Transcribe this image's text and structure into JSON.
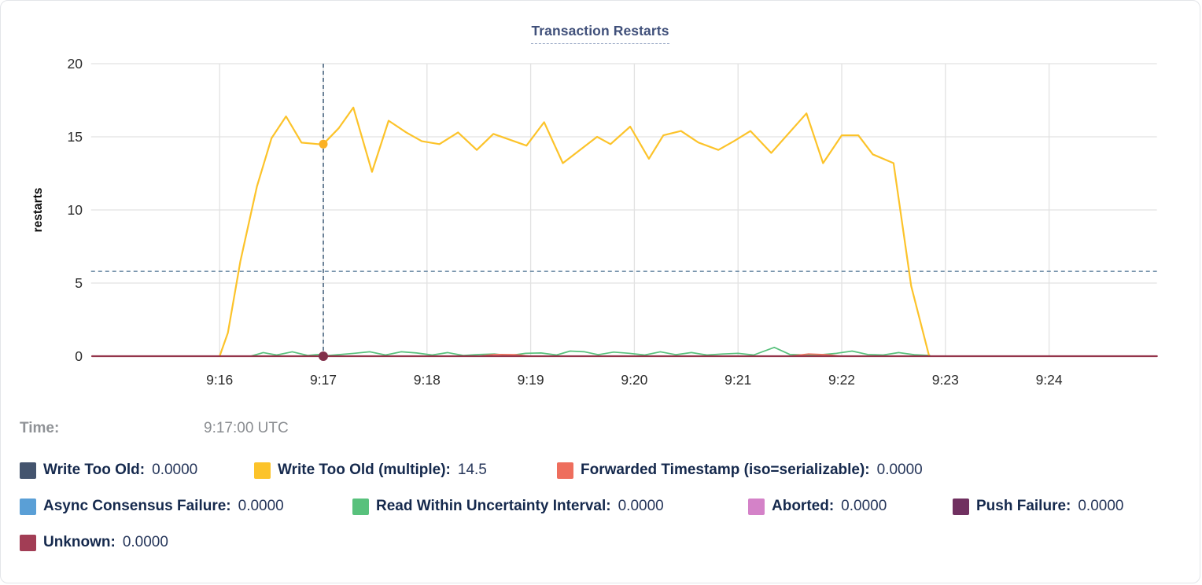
{
  "chart": {
    "title": "Transaction Restarts"
  },
  "hover": {
    "time_label": "Time:",
    "time_value": "9:17:00 UTC"
  },
  "chart_data": {
    "type": "line",
    "title": "Transaction Restarts",
    "xlabel": "",
    "ylabel": "restarts",
    "ylim": [
      0,
      20
    ],
    "y_ticks": [
      0,
      5,
      10,
      15,
      20
    ],
    "x_domain_minutes": [
      14.76,
      25.04
    ],
    "x_ticks": [
      {
        "t": 16,
        "label": "9:16"
      },
      {
        "t": 17,
        "label": "9:17"
      },
      {
        "t": 18,
        "label": "9:18"
      },
      {
        "t": 19,
        "label": "9:19"
      },
      {
        "t": 20,
        "label": "9:20"
      },
      {
        "t": 21,
        "label": "9:21"
      },
      {
        "t": 22,
        "label": "9:22"
      },
      {
        "t": 23,
        "label": "9:23"
      },
      {
        "t": 24,
        "label": "9:24"
      }
    ],
    "grid": true,
    "legend_position": "bottom",
    "crosshair": {
      "t": 17,
      "time_text": "9:17:00 UTC",
      "threshold_hline": 5.8
    },
    "series": [
      {
        "id": "write-too-old",
        "name": "Write Too Old",
        "color": "#44546e",
        "hover_value": "0.0000",
        "points": [
          [
            14.77,
            0
          ],
          [
            22.85,
            0
          ]
        ]
      },
      {
        "id": "async-consensus-failure",
        "name": "Async Consensus Failure",
        "color": "#5a9fd6",
        "hover_value": "0.0000",
        "points": [
          [
            14.77,
            0
          ],
          [
            22.85,
            0
          ]
        ]
      },
      {
        "id": "aborted",
        "name": "Aborted",
        "color": "#d482c8",
        "hover_value": "0.0000",
        "points": [
          [
            14.77,
            0
          ],
          [
            22.85,
            0
          ]
        ]
      },
      {
        "id": "push-failure",
        "name": "Push Failure",
        "color": "#703060",
        "hover_value": "0.0000",
        "points": [
          [
            14.77,
            0
          ],
          [
            22.85,
            0
          ]
        ]
      },
      {
        "id": "read-within-uncertainty-interval",
        "name": "Read Within Uncertainty Interval",
        "color": "#58c17c",
        "hover_value": "0.0000",
        "points": [
          [
            16.3,
            0
          ],
          [
            16.42,
            0.25
          ],
          [
            16.55,
            0.08
          ],
          [
            16.7,
            0.3
          ],
          [
            16.85,
            0.05
          ],
          [
            16.95,
            0.12
          ],
          [
            17.05,
            0.05
          ],
          [
            17.3,
            0.2
          ],
          [
            17.45,
            0.3
          ],
          [
            17.6,
            0.08
          ],
          [
            17.75,
            0.3
          ],
          [
            17.9,
            0.22
          ],
          [
            18.05,
            0.08
          ],
          [
            18.2,
            0.25
          ],
          [
            18.35,
            0.05
          ],
          [
            18.5,
            0.12
          ],
          [
            18.65,
            0.15
          ],
          [
            18.8,
            0.05
          ],
          [
            18.95,
            0.2
          ],
          [
            19.1,
            0.22
          ],
          [
            19.25,
            0.08
          ],
          [
            19.38,
            0.35
          ],
          [
            19.52,
            0.3
          ],
          [
            19.65,
            0.1
          ],
          [
            19.8,
            0.28
          ],
          [
            19.95,
            0.2
          ],
          [
            20.1,
            0.08
          ],
          [
            20.25,
            0.3
          ],
          [
            20.4,
            0.1
          ],
          [
            20.55,
            0.25
          ],
          [
            20.7,
            0.08
          ],
          [
            20.85,
            0.15
          ],
          [
            21.0,
            0.2
          ],
          [
            21.15,
            0.08
          ],
          [
            21.35,
            0.6
          ],
          [
            21.5,
            0.12
          ],
          [
            21.65,
            0.08
          ],
          [
            21.8,
            0.1
          ],
          [
            21.95,
            0.2
          ],
          [
            22.1,
            0.35
          ],
          [
            22.25,
            0.12
          ],
          [
            22.4,
            0.08
          ],
          [
            22.55,
            0.25
          ],
          [
            22.7,
            0.1
          ],
          [
            22.85,
            0.05
          ]
        ]
      },
      {
        "id": "forwarded-timestamp",
        "name": "Forwarded Timestamp (iso=serializable)",
        "color": "#ee6e5d",
        "hover_value": "0.0000",
        "points": [
          [
            14.77,
            0
          ],
          [
            18.5,
            0
          ],
          [
            18.65,
            0.12
          ],
          [
            18.85,
            0.1
          ],
          [
            19.0,
            0
          ],
          [
            21.5,
            0
          ],
          [
            21.68,
            0.15
          ],
          [
            21.85,
            0.1
          ],
          [
            22.0,
            0
          ],
          [
            22.85,
            0
          ]
        ]
      },
      {
        "id": "write-too-old-multiple",
        "name": "Write Too Old (multiple)",
        "color": "#fcc32a",
        "hover_value": "14.5",
        "marker": [
          17,
          14.5
        ],
        "marker_color": "#fbb124",
        "points": [
          [
            16.0,
            0
          ],
          [
            16.08,
            1.6
          ],
          [
            16.2,
            6.5
          ],
          [
            16.36,
            11.6
          ],
          [
            16.5,
            14.9
          ],
          [
            16.64,
            16.4
          ],
          [
            16.79,
            14.6
          ],
          [
            16.95,
            14.5
          ],
          [
            17.0,
            14.5
          ],
          [
            17.15,
            15.6
          ],
          [
            17.29,
            17.0
          ],
          [
            17.47,
            12.6
          ],
          [
            17.63,
            16.1
          ],
          [
            17.8,
            15.3
          ],
          [
            17.95,
            14.7
          ],
          [
            18.12,
            14.5
          ],
          [
            18.3,
            15.3
          ],
          [
            18.48,
            14.1
          ],
          [
            18.64,
            15.2
          ],
          [
            18.96,
            14.4
          ],
          [
            19.13,
            16.0
          ],
          [
            19.31,
            13.2
          ],
          [
            19.64,
            15.0
          ],
          [
            19.77,
            14.5
          ],
          [
            19.96,
            15.7
          ],
          [
            20.14,
            13.5
          ],
          [
            20.28,
            15.1
          ],
          [
            20.45,
            15.4
          ],
          [
            20.62,
            14.6
          ],
          [
            20.81,
            14.1
          ],
          [
            20.96,
            14.7
          ],
          [
            21.12,
            15.4
          ],
          [
            21.32,
            13.9
          ],
          [
            21.66,
            16.6
          ],
          [
            21.82,
            13.2
          ],
          [
            22.0,
            15.1
          ],
          [
            22.16,
            15.1
          ],
          [
            22.3,
            13.8
          ],
          [
            22.5,
            13.2
          ],
          [
            22.67,
            4.8
          ],
          [
            22.84,
            0.1
          ]
        ]
      },
      {
        "id": "unknown",
        "name": "Unknown",
        "color": "#93344a",
        "hover_value": "0.0000",
        "marker": [
          17,
          0
        ],
        "marker_color": "#82304a",
        "points": [
          [
            14.77,
            0
          ],
          [
            25.04,
            0
          ]
        ]
      }
    ]
  },
  "legend": {
    "rows": [
      [
        {
          "id": "write-too-old",
          "label": "Write Too Old",
          "value": "0.0000",
          "color": "#44546e"
        },
        {
          "id": "write-too-old-multiple",
          "label": "Write Too Old (multiple)",
          "value": "14.5",
          "color": "#fcc32a"
        },
        {
          "id": "forwarded-timestamp",
          "label": "Forwarded Timestamp (iso=serializable)",
          "value": "0.0000",
          "color": "#ee6e5d"
        }
      ],
      [
        {
          "id": "async-consensus-failure",
          "label": "Async Consensus Failure",
          "value": "0.0000",
          "color": "#5a9fd6"
        },
        {
          "id": "read-within-uncertainty-interval",
          "label": "Read Within Uncertainty Interval",
          "value": "0.0000",
          "color": "#58c17c"
        },
        {
          "id": "aborted",
          "label": "Aborted",
          "value": "0.0000",
          "color": "#d482c8"
        },
        {
          "id": "push-failure",
          "label": "Push Failure",
          "value": "0.0000",
          "color": "#703060"
        }
      ],
      [
        {
          "id": "unknown",
          "label": "Unknown",
          "value": "0.0000",
          "color": "#a23d55"
        }
      ]
    ]
  },
  "colors": {
    "grid": "#e2e2e2",
    "crosshair_vertical": "#3f5c78",
    "threshold_dashed": "#62829f",
    "tick_text": "#2b2b2b",
    "axis_label": "#0a0a0a",
    "title": "#40507a"
  }
}
